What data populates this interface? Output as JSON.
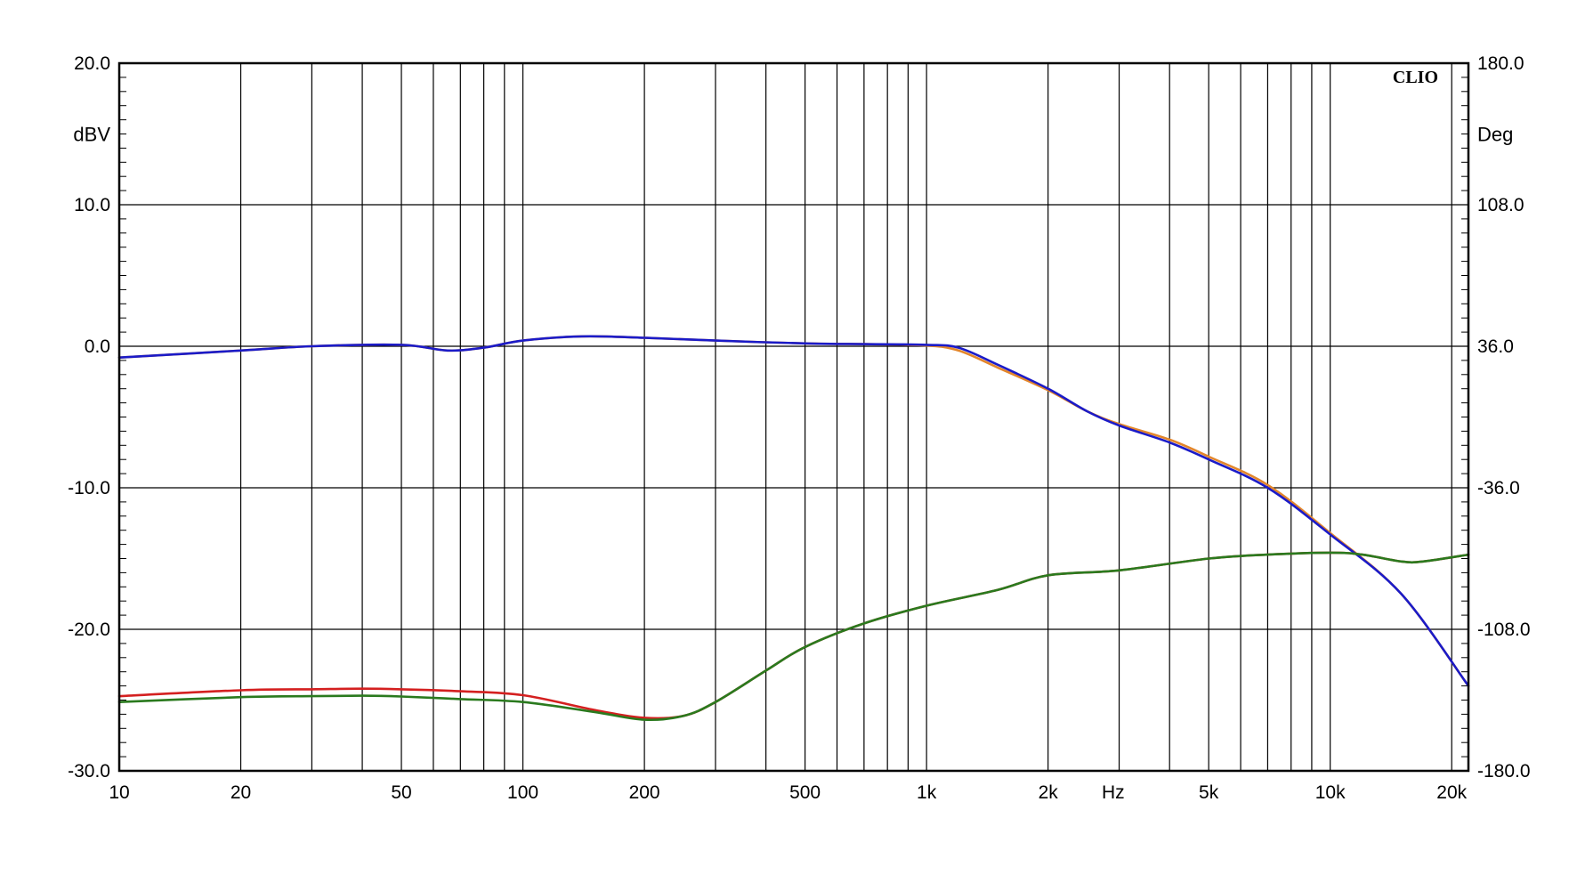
{
  "chart_data": {
    "type": "line",
    "brand": "CLIO",
    "x_scale": "log",
    "xlim": [
      10,
      22000
    ],
    "x_tick_labels": [
      {
        "value": 10,
        "label": "10"
      },
      {
        "value": 20,
        "label": "20"
      },
      {
        "value": 50,
        "label": "50"
      },
      {
        "value": 100,
        "label": "100"
      },
      {
        "value": 200,
        "label": "200"
      },
      {
        "value": 500,
        "label": "500"
      },
      {
        "value": 1000,
        "label": "1k"
      },
      {
        "value": 2000,
        "label": "2k"
      },
      {
        "value": 5000,
        "label": "5k"
      },
      {
        "value": 10000,
        "label": "10k"
      },
      {
        "value": 20000,
        "label": "20k"
      }
    ],
    "x_unit_label": "Hz",
    "y_left": {
      "label": "dBV",
      "lim": [
        -30,
        20
      ],
      "ticks": [
        "20.0",
        "10.0",
        "0.0",
        "-10.0",
        "-20.0",
        "-30.0"
      ]
    },
    "y_right": {
      "label": "Deg",
      "lim": [
        -180,
        180
      ],
      "ticks": [
        "180.0",
        "108.0",
        "36.0",
        "-36.0",
        "-108.0",
        "-180.0"
      ]
    },
    "grid": true,
    "series": [
      {
        "color": "#e3862b",
        "axis": "left",
        "points": [
          [
            10,
            -0.8
          ],
          [
            20,
            -0.3
          ],
          [
            30,
            0.0
          ],
          [
            50,
            0.1
          ],
          [
            65,
            -0.3
          ],
          [
            80,
            -0.1
          ],
          [
            100,
            0.4
          ],
          [
            140,
            0.7
          ],
          [
            200,
            0.6
          ],
          [
            300,
            0.4
          ],
          [
            500,
            0.2
          ],
          [
            700,
            0.15
          ],
          [
            1000,
            0.05
          ],
          [
            1200,
            -0.3
          ],
          [
            1500,
            -1.5
          ],
          [
            2000,
            -3.1
          ],
          [
            2500,
            -4.6
          ],
          [
            3000,
            -5.5
          ],
          [
            4000,
            -6.6
          ],
          [
            5000,
            -7.8
          ],
          [
            7000,
            -9.8
          ],
          [
            10000,
            -13.2
          ],
          [
            15000,
            -17.5
          ],
          [
            22000,
            -24.0
          ]
        ]
      },
      {
        "color": "#1b1bc8",
        "axis": "left",
        "points": [
          [
            10,
            -0.8
          ],
          [
            20,
            -0.3
          ],
          [
            30,
            0.0
          ],
          [
            50,
            0.1
          ],
          [
            65,
            -0.3
          ],
          [
            80,
            -0.1
          ],
          [
            100,
            0.4
          ],
          [
            140,
            0.7
          ],
          [
            200,
            0.6
          ],
          [
            300,
            0.4
          ],
          [
            500,
            0.2
          ],
          [
            700,
            0.15
          ],
          [
            1000,
            0.1
          ],
          [
            1200,
            -0.1
          ],
          [
            1500,
            -1.3
          ],
          [
            2000,
            -3.0
          ],
          [
            2500,
            -4.6
          ],
          [
            3000,
            -5.6
          ],
          [
            4000,
            -6.8
          ],
          [
            5000,
            -8.0
          ],
          [
            7000,
            -10.0
          ],
          [
            10000,
            -13.3
          ],
          [
            15000,
            -17.5
          ],
          [
            22000,
            -24.0
          ]
        ]
      },
      {
        "color": "#d42020",
        "axis": "right",
        "points": [
          [
            10,
            -142
          ],
          [
            20,
            -139
          ],
          [
            30,
            -138.5
          ],
          [
            40,
            -138.2
          ],
          [
            50,
            -138.5
          ],
          [
            70,
            -139.5
          ],
          [
            100,
            -141.5
          ],
          [
            150,
            -149
          ],
          [
            200,
            -153
          ],
          [
            250,
            -152
          ],
          [
            300,
            -145
          ],
          [
            400,
            -129
          ],
          [
            500,
            -117
          ],
          [
            700,
            -105
          ],
          [
            1000,
            -96
          ],
          [
            1500,
            -88
          ],
          [
            2000,
            -80.5
          ],
          [
            3000,
            -78
          ],
          [
            5000,
            -72
          ],
          [
            7000,
            -70
          ],
          [
            10000,
            -69
          ],
          [
            12000,
            -70
          ],
          [
            15000,
            -73.5
          ],
          [
            17000,
            -73.5
          ],
          [
            22000,
            -70
          ]
        ]
      },
      {
        "color": "#2a7a1e",
        "axis": "right",
        "points": [
          [
            10,
            -145
          ],
          [
            20,
            -142.5
          ],
          [
            30,
            -142
          ],
          [
            40,
            -141.8
          ],
          [
            50,
            -142.2
          ],
          [
            70,
            -143.5
          ],
          [
            100,
            -145
          ],
          [
            150,
            -150
          ],
          [
            200,
            -154
          ],
          [
            250,
            -152
          ],
          [
            300,
            -145
          ],
          [
            400,
            -129
          ],
          [
            500,
            -117
          ],
          [
            700,
            -105
          ],
          [
            1000,
            -96
          ],
          [
            1500,
            -88
          ],
          [
            2000,
            -80.5
          ],
          [
            3000,
            -78
          ],
          [
            5000,
            -72
          ],
          [
            7000,
            -70
          ],
          [
            10000,
            -69
          ],
          [
            12000,
            -70
          ],
          [
            15000,
            -73.5
          ],
          [
            17000,
            -73.5
          ],
          [
            22000,
            -70
          ]
        ]
      }
    ]
  }
}
